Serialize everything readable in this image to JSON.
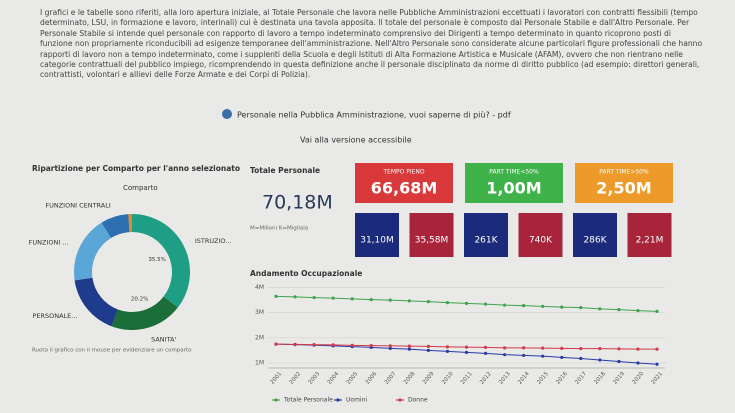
{
  "intro": {
    "text": "I grafici e le tabelle sono riferiti, alla loro apertura iniziale, al Totale Personale che lavora nelle Pubbliche Amministrazioni eccettuati i lavoratori con contratti flessibili (tempo determinato, LSU, in formazione e lavoro, interinali) cui è destinata una tavola apposita. Il totale del personale è composto dal Personale Stabile e dall'Altro Personale. Per Personale Stabile si intende quel personale con rapporto di lavoro a tempo indeterminato comprensivo dei Dirigenti a tempo determinato in quanto ricoprono posti di funzione non propriamente riconducibili ad esigenze temporanee dell'amministrazione. Nell'Altro Personale sono considerate alcune particolari figure professionali che hanno rapporti di lavoro non a tempo indeterminato, come i supplenti della Scuola e degli Istituti di Alta Formazione Artistica e Musicale (AFAM), ovvero che non rientrano nelle categorie contrattuali del pubblico impiego, ricomprendendo in questa definizione anche il personale disciplinato da norme di diritto pubblico (ad esempio: direttori generali, contrattisti, volontari e allievi delle Forze Armate e dei Corpi di Polizia)."
  },
  "links": {
    "pdf": "Personale nella Pubblica Amministrazione, vuoi saperne di più? - pdf",
    "accessible": "Vai alla versione accessibile"
  },
  "donut": {
    "type": "pie",
    "title": "Ripartizione per Comparto per l'anno selezionato",
    "legend_title": "Comparto",
    "footnote": "Ruota il grafico con il mouse per evidenziare un comparto",
    "categories": [
      "ISTRUZIO...",
      "SANITA'",
      "PERSONALE...",
      "FUNZIONI ...",
      "FUNZIONI CENTRALI",
      null
    ],
    "values": [
      35.5,
      20.2,
      17,
      18.5,
      7.8,
      1
    ],
    "value_labels": [
      "35.5%",
      "20.2%",
      null,
      null,
      null,
      null
    ],
    "colors": [
      "#1f9e86",
      "#1b6e3a",
      "#1f3b8c",
      "#5aa6d6",
      "#2d6fb0",
      "#e08a2a"
    ]
  },
  "total": {
    "title": "Totale Personale",
    "value": "70,18M",
    "note": "M=Milioni K=Migliaia"
  },
  "cards": [
    {
      "label": "TEMPO PIENO",
      "value": "66,68M",
      "color": "#d9393a"
    },
    {
      "label": "PART TIME<50%",
      "value": "1,00M",
      "color": "#3fb24a"
    },
    {
      "label": "PART TIME>50%",
      "value": "2,50M",
      "color": "#ee9a2b"
    }
  ],
  "small_cards": [
    {
      "value": "31,10M",
      "color": "#1b2a7a"
    },
    {
      "value": "35,58M",
      "color": "#a8243a"
    },
    {
      "value": "261K",
      "color": "#1b2a7a"
    },
    {
      "value": "740K",
      "color": "#a8243a"
    },
    {
      "value": "286K",
      "color": "#1b2a7a"
    },
    {
      "value": "2,21M",
      "color": "#a8243a"
    }
  ],
  "line_chart": {
    "type": "line",
    "title": "Andamento Occupazionale",
    "x": [
      "2001",
      "2002",
      "2003",
      "2004",
      "2005",
      "2006",
      "2007",
      "2008",
      "2009",
      "2010",
      "2011",
      "2012",
      "2013",
      "2014",
      "2015",
      "2016",
      "2017",
      "2018",
      "2019",
      "2020",
      "2021"
    ],
    "series": [
      {
        "name": "Totale Personale",
        "color": "#3fa34d",
        "values": [
          3.65,
          3.63,
          3.6,
          3.58,
          3.55,
          3.52,
          3.5,
          3.47,
          3.44,
          3.4,
          3.37,
          3.34,
          3.3,
          3.28,
          3.25,
          3.22,
          3.2,
          3.15,
          3.12,
          3.08,
          3.05
        ]
      },
      {
        "name": "Uomini",
        "color": "#2a3aa8",
        "values": [
          1.75,
          1.73,
          1.71,
          1.68,
          1.65,
          1.62,
          1.58,
          1.55,
          1.5,
          1.46,
          1.42,
          1.38,
          1.33,
          1.3,
          1.27,
          1.22,
          1.18,
          1.12,
          1.06,
          1.0,
          0.95
        ]
      },
      {
        "name": "Donne",
        "color": "#d23a4a",
        "values": [
          1.75,
          1.74,
          1.73,
          1.72,
          1.7,
          1.69,
          1.68,
          1.67,
          1.66,
          1.64,
          1.63,
          1.62,
          1.6,
          1.6,
          1.59,
          1.58,
          1.57,
          1.57,
          1.56,
          1.55,
          1.55
        ]
      }
    ],
    "ylim": [
      0.8,
      4.1
    ],
    "yticks": [
      {
        "value": 1,
        "label": "1M"
      },
      {
        "value": 2,
        "label": "2M"
      },
      {
        "value": 3,
        "label": "3M"
      },
      {
        "value": 4,
        "label": "4M"
      }
    ],
    "grid": true
  }
}
